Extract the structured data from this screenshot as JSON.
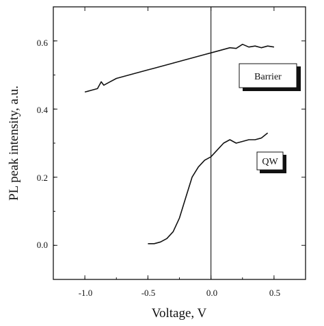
{
  "chart_data": {
    "type": "line",
    "xlabel": "Voltage, V",
    "ylabel": "PL peak intensity, a.u.",
    "xlim": [
      -1.25,
      0.75
    ],
    "ylim": [
      -0.1,
      0.7
    ],
    "xticks": [
      -1.0,
      -0.5,
      0.0,
      0.5
    ],
    "xtick_labels": [
      "-1.0",
      "-0.5",
      "0.0",
      "0.5"
    ],
    "yticks": [
      0.0,
      0.2,
      0.4,
      0.6
    ],
    "ytick_labels": [
      "0.0",
      "0.2",
      "0.4",
      "0.6"
    ],
    "grid": false,
    "reference_line_x": 0.0,
    "series": [
      {
        "name": "Barrier",
        "x": [
          -1.0,
          -0.95,
          -0.9,
          -0.87,
          -0.85,
          -0.8,
          -0.75,
          -0.7,
          -0.65,
          -0.6,
          -0.55,
          -0.5,
          -0.45,
          -0.4,
          -0.35,
          -0.3,
          -0.25,
          -0.2,
          -0.15,
          -0.1,
          -0.05,
          0.0,
          0.05,
          0.1,
          0.15,
          0.2,
          0.25,
          0.3,
          0.35,
          0.4,
          0.45,
          0.5
        ],
        "y": [
          0.45,
          0.455,
          0.46,
          0.48,
          0.47,
          0.48,
          0.49,
          0.495,
          0.5,
          0.505,
          0.51,
          0.515,
          0.52,
          0.525,
          0.53,
          0.535,
          0.54,
          0.545,
          0.55,
          0.555,
          0.56,
          0.565,
          0.57,
          0.575,
          0.58,
          0.578,
          0.59,
          0.582,
          0.585,
          0.58,
          0.585,
          0.582
        ]
      },
      {
        "name": "QW",
        "x": [
          -0.5,
          -0.45,
          -0.4,
          -0.35,
          -0.3,
          -0.25,
          -0.2,
          -0.15,
          -0.1,
          -0.05,
          0.0,
          0.05,
          0.1,
          0.15,
          0.2,
          0.25,
          0.3,
          0.35,
          0.4,
          0.45
        ],
        "y": [
          0.005,
          0.005,
          0.01,
          0.02,
          0.04,
          0.08,
          0.14,
          0.2,
          0.23,
          0.25,
          0.26,
          0.28,
          0.3,
          0.31,
          0.3,
          0.305,
          0.31,
          0.31,
          0.315,
          0.33
        ]
      }
    ],
    "annotations": [
      {
        "text": "Barrier",
        "series": "Barrier"
      },
      {
        "text": "QW",
        "series": "QW"
      }
    ]
  }
}
